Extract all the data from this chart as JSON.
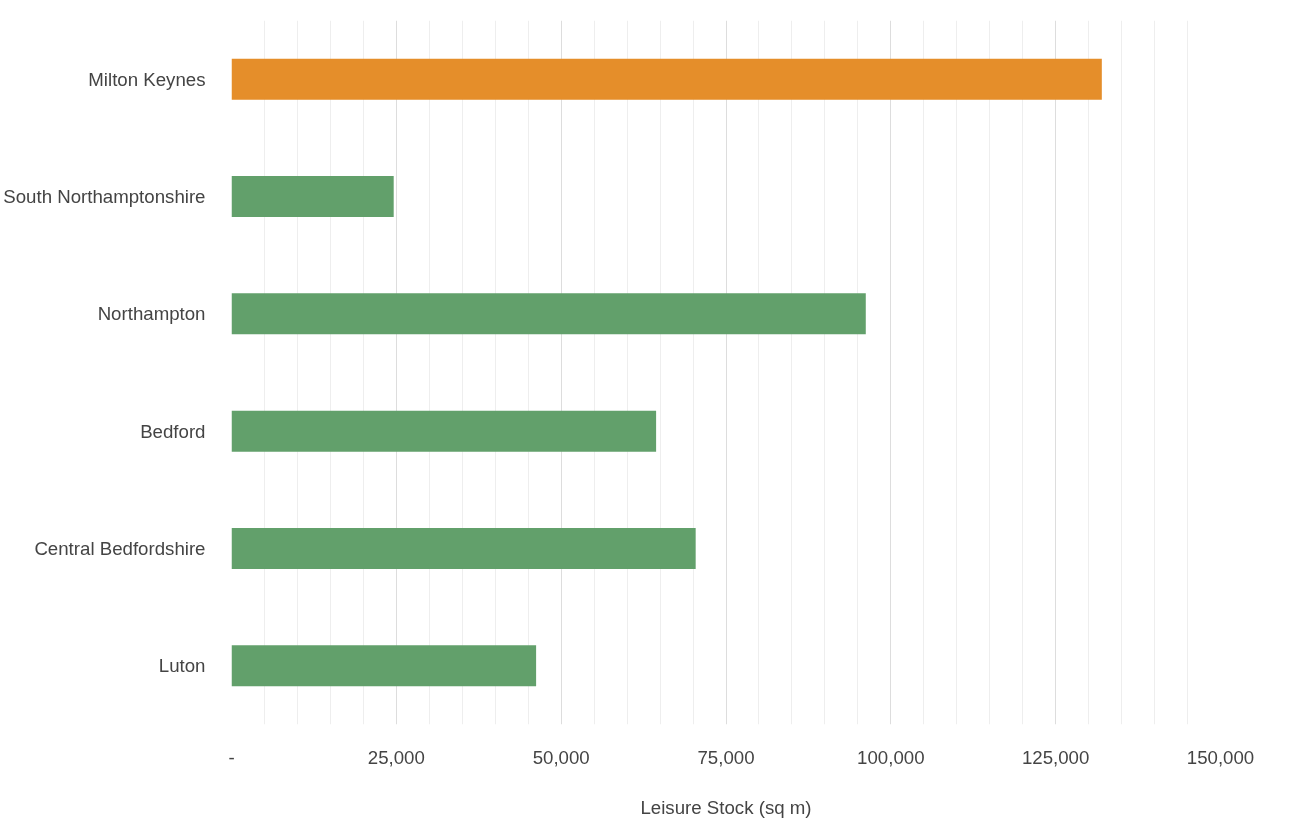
{
  "chart_data": {
    "type": "bar",
    "orientation": "horizontal",
    "xlabel": "Leisure Stock (sq m)",
    "categories": [
      "Milton Keynes",
      "South Northamptonshire",
      "Northampton",
      "Bedford",
      "Central Bedfordshire",
      "Luton"
    ],
    "values": [
      132000,
      24600,
      96200,
      64400,
      70400,
      46200
    ],
    "colors": [
      "#e58e2a",
      "#62a06b",
      "#62a06b",
      "#62a06b",
      "#62a06b",
      "#62a06b"
    ],
    "xlim": [
      0,
      150000
    ],
    "xticks": [
      {
        "value": 0,
        "label": "-"
      },
      {
        "value": 25000,
        "label": "25,000"
      },
      {
        "value": 50000,
        "label": "50,000"
      },
      {
        "value": 75000,
        "label": "75,000"
      },
      {
        "value": 100000,
        "label": "100,000"
      },
      {
        "value": 125000,
        "label": "125,000"
      },
      {
        "value": 150000,
        "label": "150,000"
      }
    ],
    "grid": "x"
  }
}
